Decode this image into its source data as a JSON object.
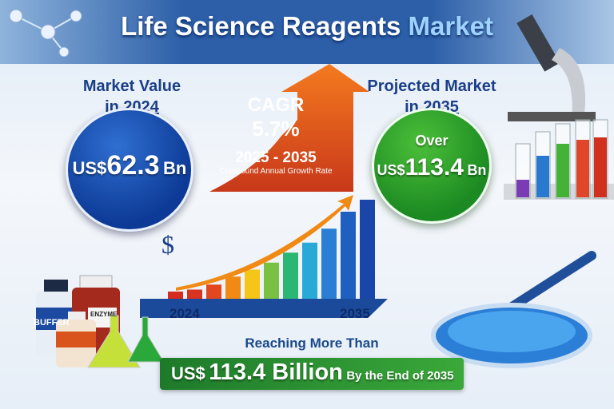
{
  "title": {
    "main": "Life Science Reagents",
    "accent": "Market"
  },
  "left": {
    "label_line1": "Market Value",
    "label_line2_prefix": "in ",
    "year": "2024",
    "currency": "US$",
    "value": "62.3",
    "unit": "Bn"
  },
  "cagr": {
    "label": "CAGR",
    "value": "5.7%",
    "period": "2025 - 2035",
    "description": "Compound Annual Growth Rate"
  },
  "right": {
    "label_line1": "Projected Market",
    "label_line2_prefix": "in ",
    "year": "2035",
    "over": "Over",
    "currency": "US$",
    "value": "113.4",
    "unit": "Bn"
  },
  "growth_chart": {
    "symbol": "$",
    "start_label": "2024",
    "end_label": "2035",
    "bar_index": [
      8,
      10,
      15,
      23,
      30,
      37,
      47,
      57,
      71,
      88,
      100
    ],
    "bar_colors": [
      "#d62b1e",
      "#d8331f",
      "#e2471f",
      "#f08a14",
      "#f5c518",
      "#7ac143",
      "#2bb673",
      "#29a9d6",
      "#2a7fd4",
      "#1f5fbf",
      "#1946a8"
    ]
  },
  "reagents": {
    "bottle1": "BUFFER",
    "bottle2": "ENZYME"
  },
  "bottom": {
    "intro": "Reaching More Than",
    "currency": "US$",
    "value": "113.4 Billion",
    "suffix": "By the End of 2035"
  }
}
